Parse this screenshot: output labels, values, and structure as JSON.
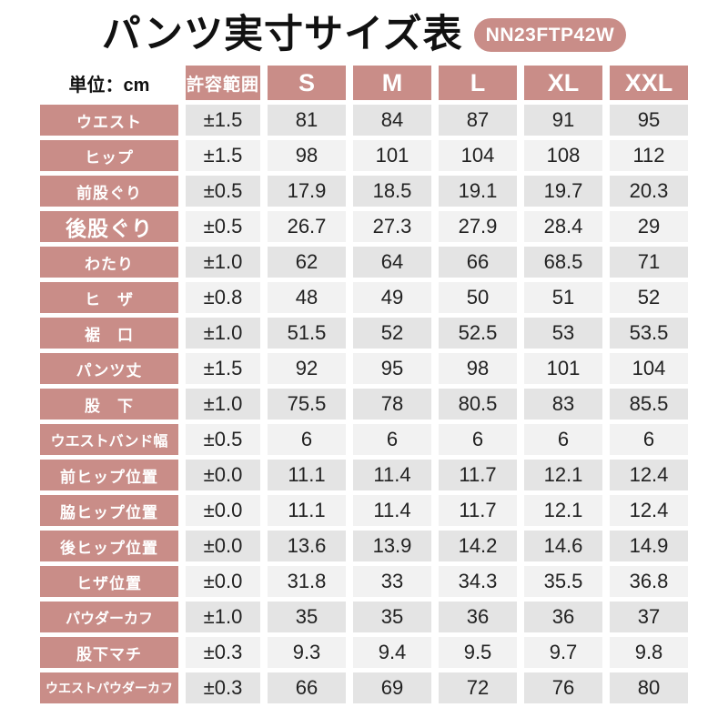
{
  "title": "パンツ実寸サイズ表",
  "product_code": "NN23FTP42W",
  "unit_label": "単位：cm",
  "colors": {
    "accent": "#c98d88",
    "row_dark": "#e4e4e4",
    "row_light": "#f2f2f2",
    "header_text": "#ffffff",
    "value_text": "#222222"
  },
  "chart_data": {
    "type": "table",
    "title": "パンツ実寸サイズ表",
    "unit": "cm",
    "columns": [
      "許容範囲",
      "S",
      "M",
      "L",
      "XL",
      "XXL"
    ],
    "rows": [
      {
        "label": "ウエスト",
        "label_style": "normal",
        "tolerance": "±1.5",
        "values": [
          "81",
          "84",
          "87",
          "91",
          "95"
        ]
      },
      {
        "label": "ヒップ",
        "label_style": "normal",
        "tolerance": "±1.5",
        "values": [
          "98",
          "101",
          "104",
          "108",
          "112"
        ]
      },
      {
        "label": "前股ぐり",
        "label_style": "normal",
        "tolerance": "±0.5",
        "values": [
          "17.9",
          "18.5",
          "19.1",
          "19.7",
          "20.3"
        ]
      },
      {
        "label": "後股ぐり",
        "label_style": "large",
        "tolerance": "±0.5",
        "values": [
          "26.7",
          "27.3",
          "27.9",
          "28.4",
          "29"
        ]
      },
      {
        "label": "わたり",
        "label_style": "normal",
        "tolerance": "±1.0",
        "values": [
          "62",
          "64",
          "66",
          "68.5",
          "71"
        ]
      },
      {
        "label": "ヒ　ザ",
        "label_style": "normal",
        "tolerance": "±0.8",
        "values": [
          "48",
          "49",
          "50",
          "51",
          "52"
        ]
      },
      {
        "label": "裾　口",
        "label_style": "normal",
        "tolerance": "±1.0",
        "values": [
          "51.5",
          "52",
          "52.5",
          "53",
          "53.5"
        ]
      },
      {
        "label": "パンツ丈",
        "label_style": "normal",
        "tolerance": "±1.5",
        "values": [
          "92",
          "95",
          "98",
          "101",
          "104"
        ]
      },
      {
        "label": "股　下",
        "label_style": "normal",
        "tolerance": "±1.0",
        "values": [
          "75.5",
          "78",
          "80.5",
          "83",
          "85.5"
        ]
      },
      {
        "label": "ウエストバンド幅",
        "label_style": "small",
        "tolerance": "±0.5",
        "values": [
          "6",
          "6",
          "6",
          "6",
          "6"
        ]
      },
      {
        "label": "前ヒップ位置",
        "label_style": "normal",
        "tolerance": "±0.0",
        "values": [
          "11.1",
          "11.4",
          "11.7",
          "12.1",
          "12.4"
        ]
      },
      {
        "label": "脇ヒップ位置",
        "label_style": "normal",
        "tolerance": "±0.0",
        "values": [
          "11.1",
          "11.4",
          "11.7",
          "12.1",
          "12.4"
        ]
      },
      {
        "label": "後ヒップ位置",
        "label_style": "normal",
        "tolerance": "±0.0",
        "values": [
          "13.6",
          "13.9",
          "14.2",
          "14.6",
          "14.9"
        ]
      },
      {
        "label": "ヒザ位置",
        "label_style": "normal",
        "tolerance": "±0.0",
        "values": [
          "31.8",
          "33",
          "34.3",
          "35.5",
          "36.8"
        ]
      },
      {
        "label": "パウダーカフ",
        "label_style": "small",
        "tolerance": "±1.0",
        "values": [
          "35",
          "35",
          "36",
          "36",
          "37"
        ]
      },
      {
        "label": "股下マチ",
        "label_style": "normal",
        "tolerance": "±0.3",
        "values": [
          "9.3",
          "9.4",
          "9.5",
          "9.7",
          "9.8"
        ]
      },
      {
        "label": "ウエストパウダーカフ",
        "label_style": "xsmall",
        "tolerance": "±0.3",
        "values": [
          "66",
          "69",
          "72",
          "76",
          "80"
        ]
      }
    ]
  }
}
